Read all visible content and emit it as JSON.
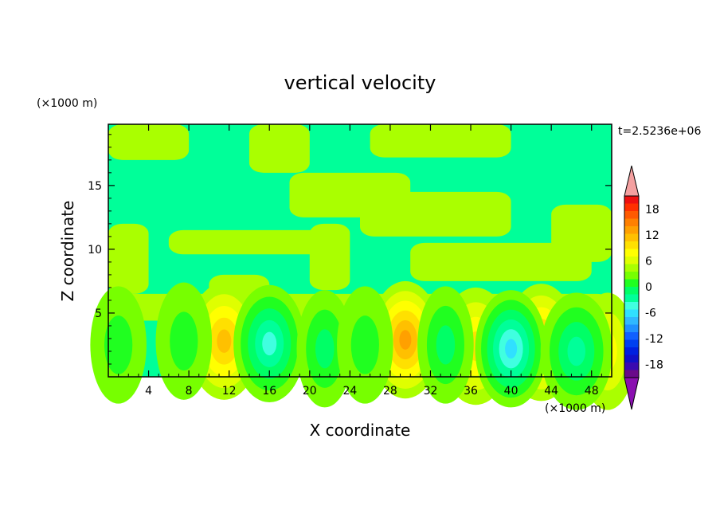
{
  "chart_data": {
    "type": "heatmap",
    "title": "vertical velocity",
    "xlabel": "X coordinate",
    "ylabel": "Z coordinate",
    "x_units": "(×1000 m)",
    "y_units": "(×1000 m)",
    "time_label": "t=2.5236e+06",
    "xlim": [
      0,
      50
    ],
    "ylim": [
      0,
      19.8
    ],
    "x_ticks": [
      4,
      8,
      12,
      16,
      20,
      24,
      28,
      32,
      36,
      40,
      44,
      48
    ],
    "y_ticks": [
      5,
      10,
      15
    ],
    "colorbar": {
      "levels": [
        -21,
        -19.5,
        -18,
        -16.5,
        -15,
        -13.5,
        -12,
        -10.5,
        -9,
        -7.5,
        -6,
        -4.5,
        -3,
        -1.5,
        0,
        1.5,
        3,
        4.5,
        6,
        7.5,
        9,
        10.5,
        12,
        13.5,
        15,
        16.5,
        18,
        19.5,
        21
      ],
      "tick_labels": [
        "-18",
        "-12",
        "-6",
        "0",
        "6",
        "12",
        "18"
      ],
      "tick_values": [
        -18,
        -12,
        -6,
        0,
        6,
        12,
        18
      ],
      "colors": [
        "#6a0a8a",
        "#3a0ab0",
        "#1010c8",
        "#0020e0",
        "#0040f0",
        "#1060ff",
        "#2090ff",
        "#30b8ff",
        "#30e0ff",
        "#40ffe0",
        "#00ff99",
        "#00ff66",
        "#20ff20",
        "#77ff00",
        "#aaff00",
        "#dfff00",
        "#ffff00",
        "#ffe000",
        "#ffc000",
        "#ffa000",
        "#ff8000",
        "#ff5a00",
        "#ff3000",
        "#ee1010"
      ],
      "over_color": "#f4a0a0",
      "under_color": "#8a10b0"
    },
    "field": {
      "description_of_values": "vertical velocity contour levels; positive plumes centered near x=11.5, 29.5, 36.5, 43 and negative cells near x=16, 40, 46.5 below z≈5",
      "plumes": [
        {
          "x": 11.5,
          "z": 2.8,
          "amplitude": 7.5
        },
        {
          "x": 29.5,
          "z": 2.9,
          "amplitude": 8.5
        },
        {
          "x": 36.5,
          "z": 2.4,
          "amplitude": 6.5
        },
        {
          "x": 43.0,
          "z": 2.7,
          "amplitude": 8.0
        },
        {
          "x": 49.6,
          "z": 2.0,
          "amplitude": 5.0
        },
        {
          "x": 16.0,
          "z": 2.6,
          "amplitude": -7.5
        },
        {
          "x": 40.0,
          "z": 2.2,
          "amplitude": -9.0
        },
        {
          "x": 46.5,
          "z": 2.0,
          "amplitude": -6.5
        },
        {
          "x": 33.5,
          "z": 2.5,
          "amplitude": -4.5
        },
        {
          "x": 21.5,
          "z": 2.2,
          "amplitude": -4.0
        },
        {
          "x": 25.5,
          "z": 2.5,
          "amplitude": -3.5
        },
        {
          "x": 7.5,
          "z": 2.8,
          "amplitude": -3.0
        },
        {
          "x": 1.0,
          "z": 2.5,
          "amplitude": -3.0
        }
      ]
    }
  }
}
